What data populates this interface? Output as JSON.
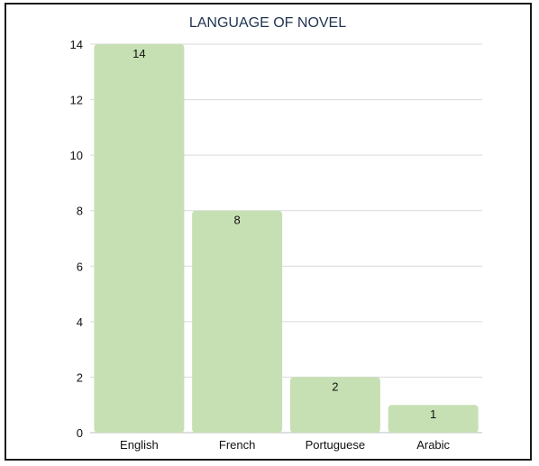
{
  "chart_data": {
    "type": "bar",
    "title": "LANGUAGE OF NOVEL",
    "categories": [
      "English",
      "French",
      "Portuguese",
      "Arabic"
    ],
    "values": [
      14,
      8,
      2,
      1
    ],
    "ylim": [
      0,
      14
    ],
    "yticks": [
      0,
      2,
      4,
      6,
      8,
      10,
      12,
      14
    ],
    "xlabel": "",
    "ylabel": "",
    "grid": true,
    "legend": "none",
    "bar_color": "#c6e0b4",
    "gridline_color": "#d9d9d9",
    "title_color": "#1f3350"
  }
}
